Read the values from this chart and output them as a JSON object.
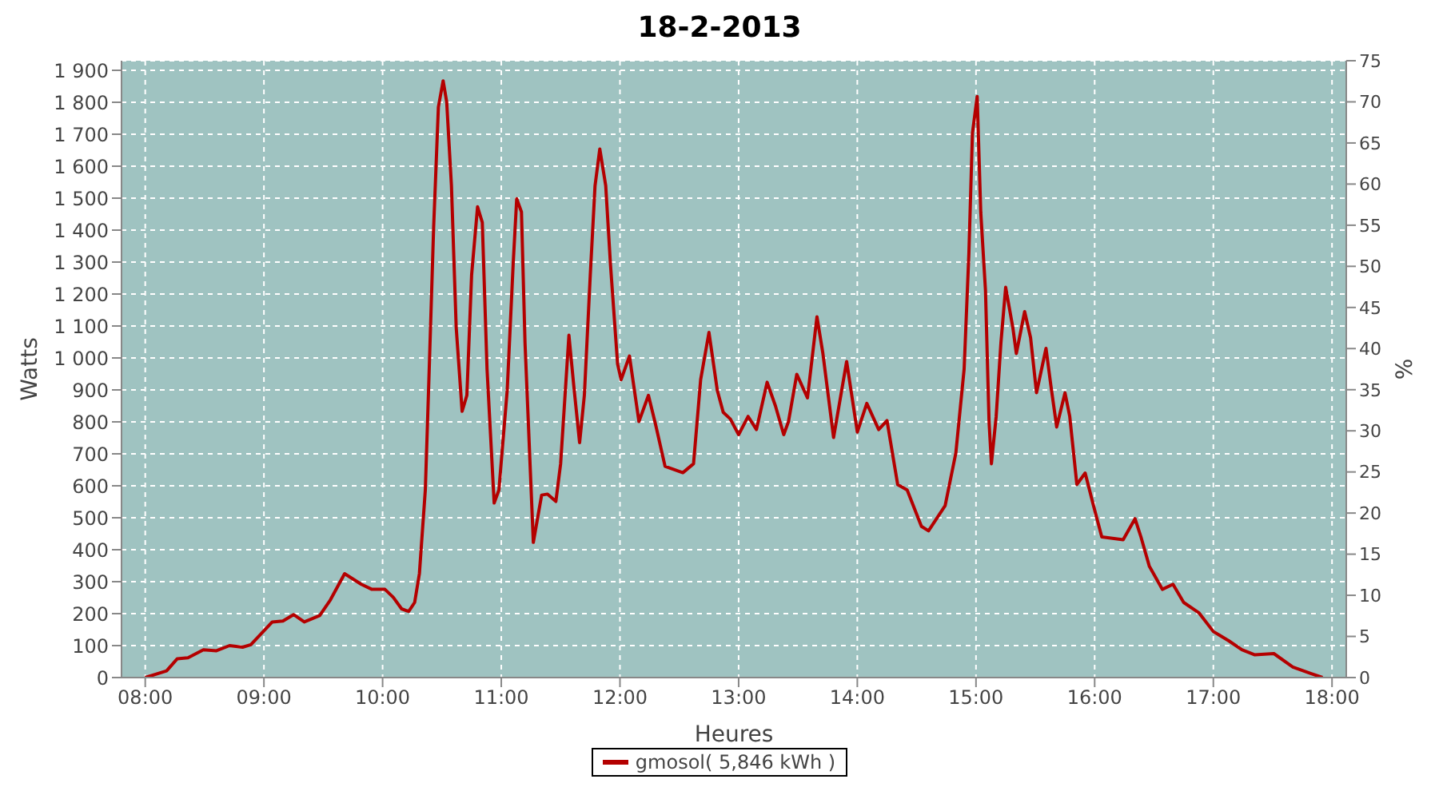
{
  "chart_data": {
    "type": "line",
    "title": "18-2-2013",
    "xlabel": "Heures",
    "ylabel": "Watts",
    "y2label": "%",
    "xlim": [
      7.8,
      18.12
    ],
    "xticks": [
      {
        "value": 8,
        "label": "08:00"
      },
      {
        "value": 9,
        "label": "09:00"
      },
      {
        "value": 10,
        "label": "10:00"
      },
      {
        "value": 11,
        "label": "11:00"
      },
      {
        "value": 12,
        "label": "12:00"
      },
      {
        "value": 13,
        "label": "13:00"
      },
      {
        "value": 14,
        "label": "14:00"
      },
      {
        "value": 15,
        "label": "15:00"
      },
      {
        "value": 16,
        "label": "16:00"
      },
      {
        "value": 17,
        "label": "17:00"
      },
      {
        "value": 18,
        "label": "18:00"
      }
    ],
    "ylim": [
      0,
      1930
    ],
    "yticks": [
      0,
      100,
      200,
      300,
      400,
      500,
      600,
      700,
      800,
      900,
      {
        "value": 1000,
        "label": "1 000"
      },
      {
        "value": 1100,
        "label": "1 100"
      },
      {
        "value": 1200,
        "label": "1 200"
      },
      {
        "value": 1300,
        "label": "1 300"
      },
      {
        "value": 1400,
        "label": "1 400"
      },
      {
        "value": 1500,
        "label": "1 500"
      },
      {
        "value": 1600,
        "label": "1 600"
      },
      {
        "value": 1700,
        "label": "1 700"
      },
      {
        "value": 1800,
        "label": "1 800"
      },
      {
        "value": 1900,
        "label": "1 900"
      }
    ],
    "y2lim": [
      0,
      75
    ],
    "y2ticks": [
      0,
      5,
      10,
      15,
      20,
      25,
      30,
      35,
      40,
      45,
      50,
      55,
      60,
      65,
      70,
      75
    ],
    "grid": true,
    "legend": "bottom",
    "series": [
      {
        "name": "gmosol( 5,846 kWh )",
        "color": "#b40000",
        "x": [
          8.0,
          8.18,
          8.27,
          8.36,
          8.49,
          8.6,
          8.71,
          8.82,
          8.89,
          9.07,
          9.16,
          9.25,
          9.34,
          9.47,
          9.56,
          9.68,
          9.82,
          9.91,
          10.02,
          10.09,
          10.16,
          10.22,
          10.27,
          10.31,
          10.36,
          10.39,
          10.43,
          10.47,
          10.51,
          10.54,
          10.58,
          10.62,
          10.67,
          10.71,
          10.75,
          10.8,
          10.84,
          10.88,
          10.94,
          10.98,
          11.05,
          11.1,
          11.13,
          11.17,
          11.2,
          11.27,
          11.34,
          11.39,
          11.46,
          11.5,
          11.57,
          11.61,
          11.66,
          11.7,
          11.75,
          11.79,
          11.83,
          11.88,
          11.92,
          11.98,
          12.01,
          12.08,
          12.16,
          12.24,
          12.3,
          12.38,
          12.53,
          12.62,
          12.68,
          12.75,
          12.82,
          12.87,
          12.93,
          13.0,
          13.08,
          13.15,
          13.24,
          13.31,
          13.38,
          13.42,
          13.49,
          13.58,
          13.66,
          13.71,
          13.8,
          13.91,
          14.0,
          14.08,
          14.18,
          14.25,
          14.34,
          14.42,
          14.54,
          14.6,
          14.74,
          14.83,
          14.9,
          14.94,
          14.97,
          15.01,
          15.04,
          15.08,
          15.11,
          15.13,
          15.17,
          15.21,
          15.25,
          15.31,
          15.34,
          15.41,
          15.46,
          15.51,
          15.59,
          15.63,
          15.68,
          15.75,
          15.79,
          15.85,
          15.92,
          15.99,
          16.06,
          16.24,
          16.34,
          16.39,
          16.46,
          16.57,
          16.66,
          16.75,
          16.88,
          17.0,
          17.13,
          17.24,
          17.35,
          17.51,
          17.67,
          17.82,
          17.92
        ],
        "values": [
          0,
          21,
          59,
          62,
          87,
          84,
          100,
          95,
          103,
          174,
          177,
          197,
          174,
          194,
          243,
          325,
          292,
          276,
          276,
          251,
          215,
          207,
          235,
          325,
          587,
          932,
          1408,
          1785,
          1867,
          1801,
          1539,
          1096,
          833,
          883,
          1260,
          1473,
          1424,
          965,
          546,
          587,
          899,
          1293,
          1498,
          1457,
          1047,
          423,
          571,
          574,
          551,
          669,
          1071,
          916,
          735,
          883,
          1260,
          1539,
          1654,
          1539,
          1293,
          981,
          932,
          1006,
          801,
          883,
          792,
          661,
          641,
          669,
          932,
          1080,
          899,
          830,
          809,
          760,
          817,
          776,
          924,
          850,
          760,
          801,
          949,
          875,
          1129,
          1014,
          751,
          989,
          768,
          858,
          776,
          804,
          604,
          587,
          473,
          459,
          538,
          702,
          965,
          1326,
          1703,
          1818,
          1457,
          1211,
          801,
          669,
          817,
          1047,
          1221,
          1096,
          1014,
          1145,
          1063,
          891,
          1030,
          916,
          784,
          891,
          817,
          604,
          640,
          538,
          440,
          431,
          497,
          440,
          349,
          276,
          292,
          235,
          202,
          144,
          115,
          87,
          71,
          75,
          33,
          13,
          0
        ]
      }
    ]
  }
}
